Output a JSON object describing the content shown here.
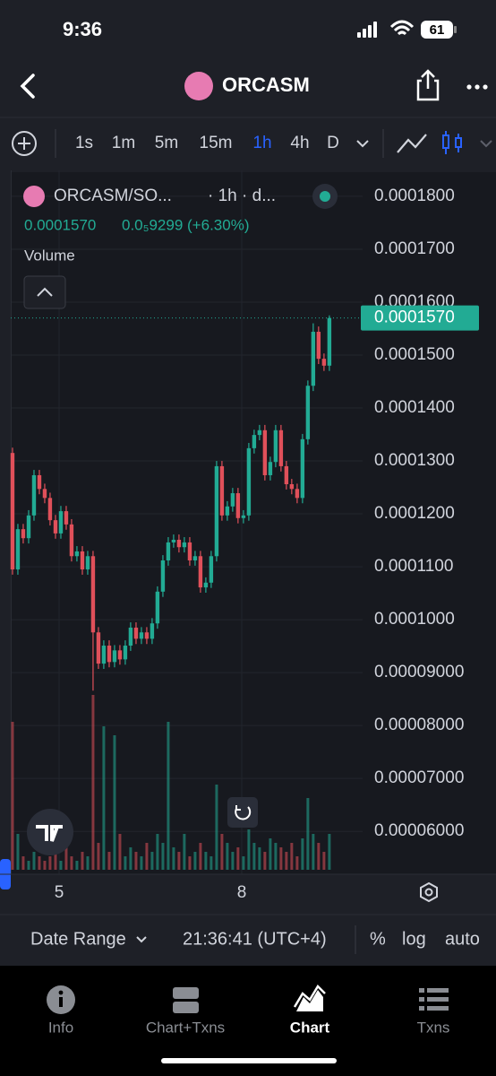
{
  "status_bar": {
    "time": "9:36",
    "battery": "61"
  },
  "header": {
    "title": "ORCASM"
  },
  "toolbar": {
    "intervals": [
      "1s",
      "1m",
      "5m",
      "15m",
      "1h",
      "4h",
      "D"
    ],
    "active_interval": "1h"
  },
  "chart_data": {
    "type": "candlestick",
    "legend": {
      "symbol": "ORCASM/SO...",
      "details": "· 1h · d...",
      "price": "0.0001570",
      "change": "0.0₅9299 (+6.30%)",
      "volume_label": "Volume"
    },
    "up_color": "#22ab94",
    "down_color": "#e0505a",
    "x": [
      4.235,
      4.323,
      4.411,
      4.5,
      4.588,
      4.676,
      4.764,
      4.852,
      4.941,
      5.029,
      5.117,
      5.205,
      5.293,
      5.382,
      5.47,
      5.558,
      5.646,
      5.734,
      5.823,
      5.911,
      5.999,
      6.087,
      6.175,
      6.264,
      6.352,
      6.44,
      6.528,
      6.616,
      6.705,
      6.793,
      6.881,
      6.969,
      7.057,
      7.146,
      7.234,
      7.322,
      7.41,
      7.498,
      7.587,
      7.675,
      7.763,
      7.851,
      7.939,
      8.028,
      8.116,
      8.204,
      8.292,
      8.38,
      8.469,
      8.557,
      8.645,
      8.733,
      8.821,
      8.91,
      8.998,
      9.086,
      9.174,
      9.262,
      9.351,
      9.439
    ],
    "open": [
      0.0001315,
      0.0001095,
      0.0001171,
      0.0001154,
      0.0001197,
      0.0001273,
      0.0001247,
      0.000123,
      0.0001188,
      0.0001163,
      0.0001205,
      0.000118,
      0.000112,
      0.0001129,
      0.0001095,
      0.000112,
      9.76e-05,
      9.17e-05,
      9.51e-05,
      9.2e-05,
      9.42e-05,
      9.25e-05,
      9.51e-05,
      9.85e-05,
      9.64e-05,
      9.76e-05,
      9.64e-05,
      9.93e-05,
      0.0001053,
      0.0001112,
      0.0001146,
      0.0001151,
      0.0001137,
      0.0001146,
      0.0001112,
      0.000112,
      0.0001061,
      0.000107,
      0.000112,
      0.000129,
      0.0001197,
      0.0001214,
      0.0001239,
      0.0001192,
      0.0001197,
      0.0001324,
      0.0001349,
      0.0001358,
      0.0001273,
      0.0001298,
      0.0001358,
      0.000129,
      0.0001256,
      0.0001247,
      0.000123,
      0.0001341,
      0.0001442,
      0.0001544,
      0.0001493,
      0.000148
    ],
    "high": [
      0.0001325,
      0.0001181,
      0.0001181,
      0.0001207,
      0.0001283,
      0.0001283,
      0.0001257,
      0.000124,
      0.0001198,
      0.0001215,
      0.0001215,
      0.000119,
      0.0001139,
      0.0001139,
      0.000113,
      0.000113,
      9.86e-05,
      9.61e-05,
      9.61e-05,
      9.52e-05,
      9.52e-05,
      9.61e-05,
      9.95e-05,
      9.95e-05,
      9.86e-05,
      9.86e-05,
      0.0001003,
      0.0001063,
      0.0001122,
      0.0001156,
      0.0001161,
      0.0001161,
      0.0001156,
      0.0001156,
      0.000113,
      0.000113,
      0.000108,
      0.000113,
      0.00013,
      0.00013,
      0.0001224,
      0.0001249,
      0.0001249,
      0.0001207,
      0.0001334,
      0.0001359,
      0.0001368,
      0.0001368,
      0.0001308,
      0.0001368,
      0.0001368,
      0.00013,
      0.0001266,
      0.0001257,
      0.0001351,
      0.0001452,
      0.000156,
      0.0001554,
      0.0001503,
      0.0001575
    ],
    "low": [
      0.0001085,
      0.0001085,
      0.0001144,
      0.0001144,
      0.0001187,
      0.0001237,
      0.000122,
      0.0001178,
      0.0001153,
      0.0001153,
      0.000117,
      0.000111,
      0.000111,
      0.0001085,
      0.0001085,
      8.66e-05,
      9.07e-05,
      9.07e-05,
      9.1e-05,
      9.1e-05,
      9.15e-05,
      9.15e-05,
      9.41e-05,
      9.54e-05,
      9.54e-05,
      9.54e-05,
      9.54e-05,
      9.83e-05,
      0.0001043,
      0.0001102,
      0.0001136,
      0.0001127,
      0.0001127,
      0.0001102,
      0.0001102,
      0.0001051,
      0.0001051,
      0.000106,
      0.000111,
      0.0001187,
      0.0001187,
      0.0001204,
      0.0001182,
      0.0001182,
      0.0001187,
      0.0001314,
      0.0001339,
      0.0001263,
      0.0001263,
      0.0001288,
      0.000128,
      0.0001246,
      0.0001237,
      0.000122,
      0.000122,
      0.0001331,
      0.0001432,
      0.0001483,
      0.000147,
      0.000147
    ],
    "close": [
      0.0001095,
      0.0001171,
      0.0001154,
      0.0001197,
      0.0001273,
      0.0001247,
      0.000123,
      0.0001188,
      0.0001163,
      0.0001205,
      0.000118,
      0.000112,
      0.0001129,
      0.0001095,
      0.000112,
      9.76e-05,
      9.17e-05,
      9.51e-05,
      9.2e-05,
      9.42e-05,
      9.25e-05,
      9.51e-05,
      9.85e-05,
      9.64e-05,
      9.76e-05,
      9.64e-05,
      9.93e-05,
      0.0001053,
      0.0001112,
      0.0001146,
      0.0001151,
      0.0001137,
      0.0001146,
      0.0001112,
      0.000112,
      0.0001061,
      0.000107,
      0.000112,
      0.000129,
      0.0001197,
      0.0001214,
      0.0001239,
      0.0001192,
      0.0001197,
      0.0001324,
      0.0001349,
      0.0001358,
      0.0001273,
      0.0001298,
      0.0001358,
      0.000129,
      0.0001256,
      0.0001247,
      0.000123,
      0.0001341,
      0.0001442,
      0.0001544,
      0.0001493,
      0.000148,
      0.000157
    ],
    "volume": [
      165,
      40,
      15,
      10,
      20,
      15,
      10,
      15,
      20,
      10,
      25,
      15,
      10,
      20,
      15,
      195,
      30,
      160,
      20,
      150,
      40,
      15,
      25,
      20,
      15,
      30,
      20,
      40,
      30,
      165,
      25,
      20,
      40,
      15,
      20,
      30,
      20,
      15,
      95,
      40,
      30,
      20,
      25,
      15,
      45,
      30,
      25,
      20,
      35,
      30,
      25,
      20,
      30,
      15,
      35,
      80,
      40,
      30,
      20,
      40
    ],
    "xlim": [
      4.206,
      9.985
    ],
    "xticks": [
      5,
      8
    ],
    "ylim": [
      5.19e-05,
      0.0001849
    ],
    "yticks": [
      {
        "value": 0.00018,
        "label": "0.0001800"
      },
      {
        "value": 0.00017,
        "label": "0.0001700"
      },
      {
        "value": 0.00016,
        "label": "0.0001600"
      },
      {
        "value": 0.00015,
        "label": "0.0001500"
      },
      {
        "value": 0.00014,
        "label": "0.0001400"
      },
      {
        "value": 0.00013,
        "label": "0.0001300"
      },
      {
        "value": 0.00012,
        "label": "0.0001200"
      },
      {
        "value": 0.00011,
        "label": "0.0001100"
      },
      {
        "value": 0.0001,
        "label": "0.0001000"
      },
      {
        "value": 9e-05,
        "label": "0.00009000"
      },
      {
        "value": 8e-05,
        "label": "0.00008000"
      },
      {
        "value": 7e-05,
        "label": "0.00007000"
      },
      {
        "value": 6e-05,
        "label": "0.00006000"
      }
    ],
    "last_price": {
      "value": 0.000157,
      "label": "0.0001570"
    },
    "grid": true
  },
  "footer": {
    "date_range": "Date Range",
    "time": "21:36:41 (UTC+4)",
    "percent": "%",
    "log": "log",
    "auto": "auto"
  },
  "tabs": [
    "Info",
    "Chart+Txns",
    "Chart",
    "Txns"
  ],
  "active_tab": "Chart"
}
